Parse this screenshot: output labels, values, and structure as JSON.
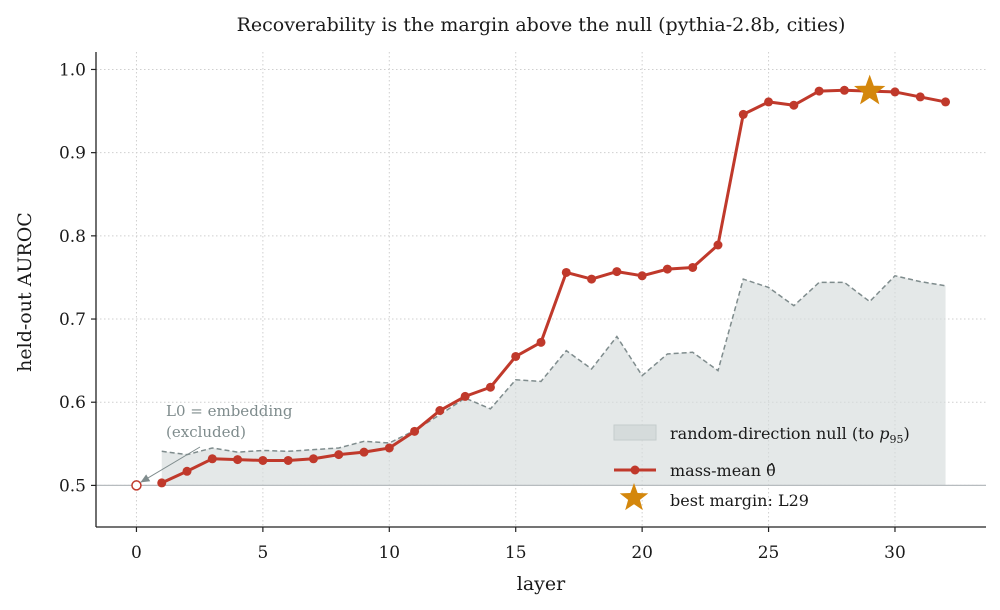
{
  "chart_data": {
    "type": "line",
    "title": "Recoverability is the margin above the null (pythia-2.8b, cities)",
    "xlabel": "layer",
    "ylabel": "held-out AUROC",
    "xlim": [
      -1.6,
      33.6
    ],
    "ylim": [
      0.45,
      1.021
    ],
    "xticks": [
      0,
      5,
      10,
      15,
      20,
      25,
      30
    ],
    "yticks": [
      0.5,
      0.6,
      0.7,
      0.8,
      0.9,
      1.0
    ],
    "grid": true,
    "legend_position": "lower-right",
    "colors": {
      "massmean": "#c0392b",
      "null_fill": "#d5dbdb",
      "null_line": "#7f8c8d",
      "star": "#d4870c",
      "baseline": "#b7bcbf"
    },
    "baseline": 0.5,
    "series": [
      {
        "name": "random-direction null (to p95)",
        "legend_label": "random-direction null (to ",
        "legend_symbol": "p",
        "legend_subscript": "95",
        "kind": "shaded-area",
        "x": [
          1,
          2,
          3,
          4,
          5,
          6,
          7,
          8,
          9,
          10,
          11,
          12,
          13,
          14,
          15,
          16,
          17,
          18,
          19,
          20,
          21,
          22,
          23,
          24,
          25,
          26,
          27,
          28,
          29,
          30,
          31,
          32
        ],
        "values": [
          0.541,
          0.537,
          0.545,
          0.54,
          0.542,
          0.541,
          0.543,
          0.545,
          0.553,
          0.551,
          0.566,
          0.585,
          0.605,
          0.592,
          0.627,
          0.625,
          0.662,
          0.64,
          0.679,
          0.632,
          0.658,
          0.66,
          0.638,
          0.748,
          0.738,
          0.716,
          0.744,
          0.744,
          0.721,
          0.752,
          0.745,
          0.74
        ]
      },
      {
        "name": "mass-mean θ̂",
        "kind": "line-markers",
        "x": [
          1,
          2,
          3,
          4,
          5,
          6,
          7,
          8,
          9,
          10,
          11,
          12,
          13,
          14,
          15,
          16,
          17,
          18,
          19,
          20,
          21,
          22,
          23,
          24,
          25,
          26,
          27,
          28,
          29,
          30,
          31,
          32
        ],
        "values": [
          0.503,
          0.517,
          0.532,
          0.531,
          0.53,
          0.53,
          0.532,
          0.537,
          0.54,
          0.545,
          0.565,
          0.59,
          0.607,
          0.618,
          0.655,
          0.672,
          0.756,
          0.748,
          0.757,
          0.752,
          0.76,
          0.762,
          0.789,
          0.946,
          0.961,
          0.957,
          0.974,
          0.975,
          0.974,
          0.973,
          0.967,
          0.961
        ]
      }
    ],
    "excluded_point": {
      "x": 0,
      "y": 0.5
    },
    "best_margin": {
      "label": "best margin: L29",
      "x": 29,
      "y": 0.974
    },
    "annotation": {
      "lines": [
        "L0 = embedding",
        "(excluded)"
      ],
      "points_to": {
        "x": 0,
        "y": 0.5
      }
    }
  }
}
